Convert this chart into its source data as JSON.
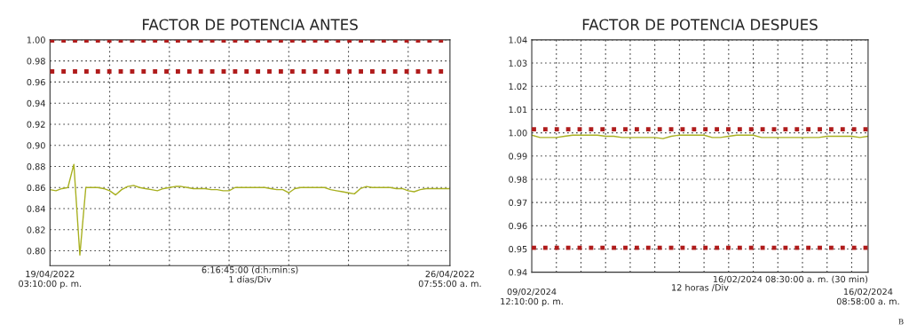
{
  "chart_data": [
    {
      "type": "line",
      "title": "FACTOR DE POTENCIA ANTES",
      "xlabel": "6:16:45:00 (d:h:min:s)\n1 días/Div",
      "categories": [
        "19/04/2022\n03:10:00 p. m.",
        null,
        null,
        null,
        null,
        null,
        null,
        null,
        null,
        null,
        null,
        null,
        null,
        null,
        null,
        null,
        null,
        null,
        null,
        null,
        null,
        null,
        null,
        null,
        null,
        null,
        null,
        null,
        null,
        null,
        null,
        null,
        null,
        null,
        null,
        null,
        null,
        null,
        null,
        null,
        null,
        null,
        null,
        null,
        null,
        null,
        null,
        null,
        null,
        null,
        null,
        null,
        null,
        null,
        null,
        null,
        null,
        null,
        null,
        null,
        null,
        null,
        null,
        null,
        null,
        null,
        null,
        "26/04/2022\n07:55:00 a. m."
      ],
      "series": [
        {
          "color": "#a8b020",
          "values": [
            0.858,
            0.857,
            0.859,
            0.86,
            0.882,
            0.796,
            0.86,
            0.86,
            0.86,
            0.859,
            0.857,
            0.853,
            0.858,
            0.861,
            0.862,
            0.86,
            0.859,
            0.858,
            0.857,
            0.859,
            0.86,
            0.861,
            0.861,
            0.86,
            0.859,
            0.859,
            0.859,
            0.858,
            0.858,
            0.857,
            0.857,
            0.86,
            0.86,
            0.86,
            0.86,
            0.86,
            0.86,
            0.859,
            0.858,
            0.858,
            0.855,
            0.859,
            0.86,
            0.86,
            0.86,
            0.86,
            0.86,
            0.858,
            0.857,
            0.856,
            0.855,
            0.854,
            0.859,
            0.861,
            0.86,
            0.86,
            0.86,
            0.86,
            0.859,
            0.859,
            0.857,
            0.856,
            0.858,
            0.859,
            0.859,
            0.859,
            0.859,
            0.859
          ]
        }
      ],
      "ylim": [
        0.786,
        1.0
      ],
      "yticks": [
        {
          "value": 0.8,
          "label": "0.80"
        },
        {
          "value": 0.82,
          "label": "0.82"
        },
        {
          "value": 0.84,
          "label": "0.84"
        },
        {
          "value": 0.86,
          "label": "0.86"
        },
        {
          "value": 0.88,
          "label": "0.88"
        },
        {
          "value": 0.9,
          "label": "0.90"
        },
        {
          "value": 0.92,
          "label": "0.92"
        },
        {
          "value": 0.94,
          "label": "0.94"
        },
        {
          "value": 0.96,
          "label": "0.96"
        },
        {
          "value": 0.98,
          "label": "0.98"
        },
        {
          "value": 1.0,
          "label": "1.00"
        }
      ],
      "ref_lines": [
        {
          "axis": "y",
          "value": 0.9995,
          "color": "#b01c1c",
          "line_style": "dotted"
        },
        {
          "axis": "y",
          "value": 0.97,
          "color": "#b01c1c",
          "line_style": "dotted"
        }
      ],
      "grid": true,
      "line_style": "solid"
    },
    {
      "type": "line",
      "title": "FACTOR DE POTENCIA DESPUES",
      "xlabel": "12 horas /Div",
      "annotations": [
        "16/02/2024 08:30:00 a. m. (30 min)",
        "B"
      ],
      "categories": [
        "09/02/2024\n12:10:00 p. m.",
        null,
        null,
        null,
        null,
        null,
        null,
        null,
        null,
        null,
        null,
        null,
        null,
        null,
        null,
        null,
        null,
        null,
        null,
        null,
        null,
        null,
        null,
        null,
        null,
        null,
        null,
        null,
        null,
        null,
        null,
        null,
        null,
        null,
        null,
        null,
        null,
        null,
        null,
        null,
        null,
        "16/02/2024\n08:58:00 a. m."
      ],
      "series": [
        {
          "color": "#a8b020",
          "values": [
            0.999,
            0.998,
            0.998,
            0.998,
            0.9985,
            0.999,
            0.999,
            0.999,
            0.999,
            0.9985,
            0.9985,
            0.998,
            0.998,
            0.998,
            0.998,
            0.998,
            0.9975,
            0.9985,
            0.999,
            0.999,
            0.999,
            0.999,
            0.998,
            0.998,
            0.9985,
            0.999,
            0.999,
            0.999,
            0.998,
            0.998,
            0.998,
            0.998,
            0.998,
            0.998,
            0.998,
            0.998,
            0.9985,
            0.9985,
            0.9985,
            0.9985,
            0.998,
            0.9985
          ]
        }
      ],
      "ylim": [
        0.94,
        1.04
      ],
      "yticks": [
        {
          "value": 0.94,
          "label": "0.94"
        },
        {
          "value": 0.95,
          "label": "0.95"
        },
        {
          "value": 0.96,
          "label": "0.96"
        },
        {
          "value": 0.97,
          "label": "0.97"
        },
        {
          "value": 0.98,
          "label": "0.98"
        },
        {
          "value": 0.99,
          "label": "0.99"
        },
        {
          "value": 1.0,
          "label": "1.00"
        },
        {
          "value": 1.01,
          "label": "1.01"
        },
        {
          "value": 1.02,
          "label": "1.02"
        },
        {
          "value": 1.03,
          "label": "1.03"
        },
        {
          "value": 1.04,
          "label": "1.04"
        }
      ],
      "ref_lines": [
        {
          "axis": "y",
          "value": 1.0015,
          "color": "#b01c1c",
          "line_style": "dotted"
        },
        {
          "axis": "y",
          "value": 0.9505,
          "color": "#b01c1c",
          "line_style": "dotted"
        }
      ],
      "grid": true,
      "line_style": "solid"
    }
  ]
}
